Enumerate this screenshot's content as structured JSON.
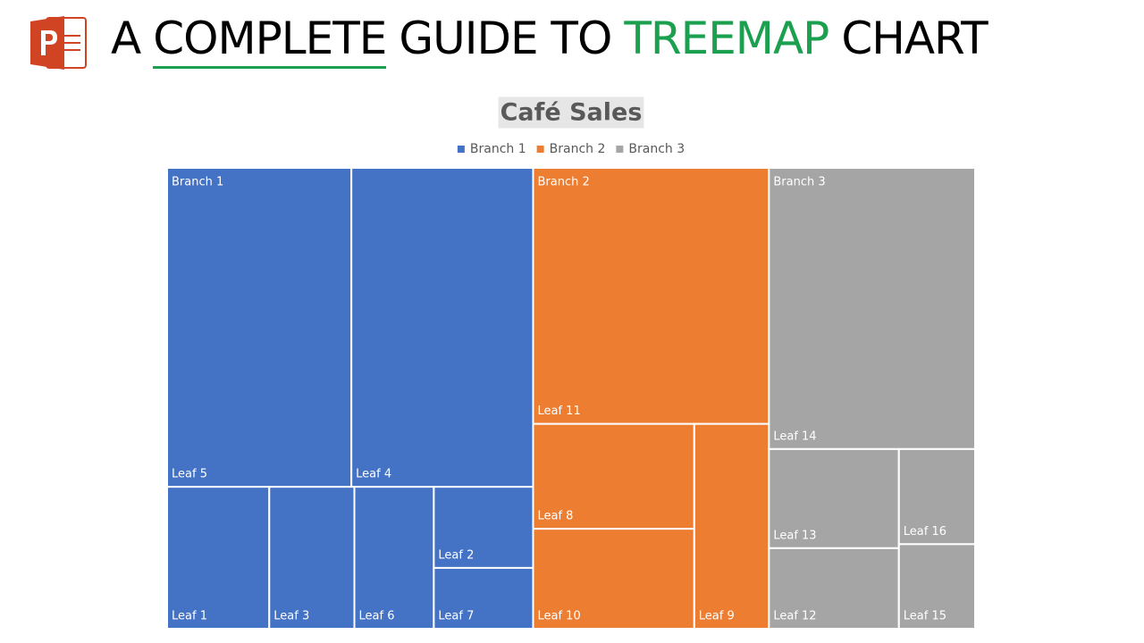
{
  "header": {
    "title_parts": [
      "A",
      "COMPLETE",
      "GUIDE TO",
      "TREEMAP",
      "CHART"
    ]
  },
  "chart_data": {
    "type": "treemap",
    "title": "Café Sales",
    "series": [
      {
        "name": "Branch 1",
        "color": "#4472c4",
        "categories": [
          "Leaf 5",
          "Leaf 4",
          "Leaf 1",
          "Leaf 3",
          "Leaf 6",
          "Leaf 2",
          "Leaf 7"
        ],
        "values": [
          73,
          72,
          18,
          15,
          14,
          10,
          7.5
        ]
      },
      {
        "name": "Branch 2",
        "color": "#ed7d31",
        "categories": [
          "Leaf 11",
          "Leaf 8",
          "Leaf 10",
          "Leaf 9"
        ],
        "values": [
          75,
          21,
          20,
          19
        ]
      },
      {
        "name": "Branch 3",
        "color": "#a5a5a5",
        "categories": [
          "Leaf 14",
          "Leaf 13",
          "Leaf 12",
          "Leaf 16",
          "Leaf 15"
        ],
        "values": [
          72,
          16,
          13,
          9,
          8
        ]
      }
    ]
  }
}
